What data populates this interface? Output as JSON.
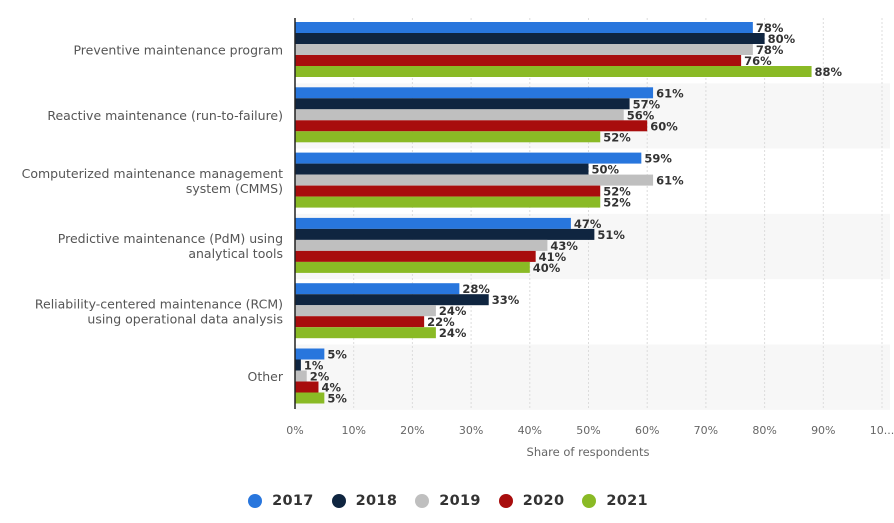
{
  "chart_data": {
    "type": "bar",
    "orientation": "horizontal",
    "title": "",
    "xlabel": "Share of respondents",
    "ylabel": "",
    "xlim": [
      0,
      100
    ],
    "grid": true,
    "legend_position": "bottom-center",
    "categories": [
      [
        "Preventive maintenance program"
      ],
      [
        "Reactive maintenance (run-to-failure)"
      ],
      [
        "Computerized maintenance management",
        "system (CMMS)"
      ],
      [
        "Predictive maintenance (PdM) using",
        "analytical tools"
      ],
      [
        "Reliability-centered maintenance (RCM)",
        "using operational data analysis"
      ],
      [
        "Other"
      ]
    ],
    "x_ticks": [
      "0%",
      "10%",
      "20%",
      "30%",
      "40%",
      "50%",
      "60%",
      "70%",
      "80%",
      "90%",
      "10..."
    ],
    "x_tick_values": [
      0,
      10,
      20,
      30,
      40,
      50,
      60,
      70,
      80,
      90,
      100
    ],
    "series": [
      {
        "name": "2017",
        "color": "#2876dd",
        "values": [
          78,
          61,
          59,
          47,
          28,
          5
        ]
      },
      {
        "name": "2018",
        "color": "#0f2540",
        "values": [
          80,
          57,
          50,
          51,
          33,
          1
        ]
      },
      {
        "name": "2019",
        "color": "#bfbfbf",
        "values": [
          78,
          56,
          61,
          43,
          24,
          2
        ]
      },
      {
        "name": "2020",
        "color": "#a80d0d",
        "values": [
          76,
          60,
          52,
          41,
          22,
          4
        ]
      },
      {
        "name": "2021",
        "color": "#8aba25",
        "values": [
          88,
          52,
          52,
          40,
          24,
          5
        ]
      }
    ],
    "value_suffix": "%"
  },
  "legend": {
    "items": [
      {
        "label": "2017",
        "color": "#2876dd"
      },
      {
        "label": "2018",
        "color": "#0f2540"
      },
      {
        "label": "2019",
        "color": "#bfbfbf"
      },
      {
        "label": "2020",
        "color": "#a80d0d"
      },
      {
        "label": "2021",
        "color": "#8aba25"
      }
    ]
  }
}
